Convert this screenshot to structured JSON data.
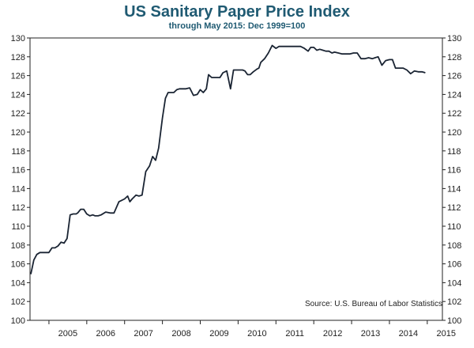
{
  "chart_data": {
    "type": "line",
    "title": "US Sanitary Paper Price Index",
    "subtitle": "through May 2015:  Dec 1999=100",
    "annotation": "Source: U.S. Bureau of Labor Statistics",
    "ylim": [
      100,
      130
    ],
    "xlim": [
      2004.5,
      2015.4
    ],
    "y_ticks": [
      "100",
      "102",
      "104",
      "106",
      "108",
      "110",
      "112",
      "114",
      "116",
      "118",
      "120",
      "122",
      "124",
      "126",
      "128",
      "130"
    ],
    "x_ticks": [
      "2005",
      "2006",
      "2007",
      "2008",
      "2009",
      "2010",
      "2011",
      "2012",
      "2013",
      "2014",
      "2015"
    ],
    "line_color": "#1a2433",
    "series": [
      {
        "x": [
          2004.52,
          2004.6,
          2004.68,
          2004.76,
          2004.84,
          2004.92,
          2005.0,
          2005.08,
          2005.16,
          2005.24,
          2005.32,
          2005.4,
          2005.48,
          2005.56,
          2005.64,
          2005.72,
          2005.76,
          2005.84,
          2005.92,
          2006.0,
          2006.08,
          2006.16,
          2006.22,
          2006.3,
          2006.38,
          2006.5,
          2006.62,
          2006.72,
          2006.85,
          2007.0,
          2007.08,
          2007.14,
          2007.2,
          2007.3,
          2007.38,
          2007.46,
          2007.56,
          2007.66,
          2007.74,
          2007.82,
          2007.9,
          2008.0,
          2008.08,
          2008.15,
          2008.22,
          2008.3,
          2008.38,
          2008.45,
          2008.52,
          2008.62,
          2008.72,
          2008.82,
          2008.92,
          2009.0,
          2009.08,
          2009.16,
          2009.22,
          2009.3,
          2009.38,
          2009.45,
          2009.52,
          2009.6,
          2009.7,
          2009.8,
          2009.88,
          2009.96,
          2010.0,
          2010.06,
          2010.12,
          2010.18,
          2010.25,
          2010.32,
          2010.4,
          2010.5,
          2010.55,
          2010.6,
          2010.7,
          2010.8,
          2010.9,
          2011.0,
          2011.08,
          2011.16,
          2011.26,
          2011.35,
          2011.45,
          2011.55,
          2011.65,
          2011.75,
          2011.85,
          2011.92,
          2012.0,
          2012.08,
          2012.16,
          2012.24,
          2012.32,
          2012.4,
          2012.48,
          2012.55,
          2012.65,
          2012.75,
          2012.85,
          2012.95,
          2013.05,
          2013.15,
          2013.25,
          2013.35,
          2013.45,
          2013.55,
          2013.62,
          2013.7,
          2013.8,
          2013.9,
          2014.0,
          2014.08,
          2014.16,
          2014.26,
          2014.36,
          2014.46,
          2014.56,
          2014.66,
          2014.76,
          2014.86,
          2014.95
        ],
        "y": [
          104.9,
          106.4,
          107.0,
          107.2,
          107.2,
          107.2,
          107.2,
          107.7,
          107.7,
          107.9,
          108.3,
          108.2,
          108.7,
          111.2,
          111.3,
          111.3,
          111.4,
          111.8,
          111.8,
          111.3,
          111.1,
          111.2,
          111.1,
          111.1,
          111.2,
          111.5,
          111.4,
          111.4,
          112.6,
          112.9,
          113.2,
          112.6,
          112.9,
          113.3,
          113.2,
          113.3,
          115.8,
          116.4,
          117.4,
          117.0,
          118.3,
          121.5,
          123.6,
          124.2,
          124.2,
          124.2,
          124.5,
          124.6,
          124.6,
          124.6,
          124.7,
          123.9,
          124.0,
          124.5,
          124.2,
          124.6,
          126.1,
          125.8,
          125.8,
          125.8,
          125.8,
          126.3,
          126.5,
          124.6,
          126.6,
          126.6,
          126.6,
          126.6,
          126.6,
          126.5,
          126.1,
          126.1,
          126.4,
          126.7,
          126.8,
          127.4,
          127.8,
          128.4,
          129.2,
          128.9,
          129.1,
          129.1,
          129.1,
          129.1,
          129.1,
          129.1,
          129.1,
          128.9,
          128.6,
          129.0,
          129.0,
          128.7,
          128.8,
          128.7,
          128.6,
          128.6,
          128.4,
          128.5,
          128.4,
          128.3,
          128.3,
          128.3,
          128.4,
          128.4,
          127.8,
          127.8,
          127.9,
          127.8,
          127.9,
          128.0,
          127.1,
          127.6,
          127.7,
          127.7,
          126.8,
          126.8,
          126.8,
          126.6,
          126.2,
          126.5,
          126.4,
          126.4,
          126.3
        ]
      }
    ]
  }
}
